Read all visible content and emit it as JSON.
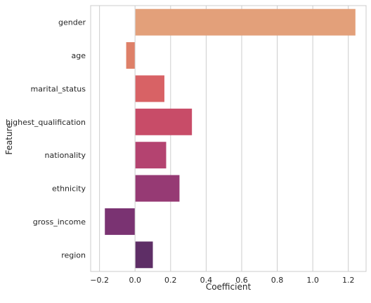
{
  "chart_data": {
    "type": "bar",
    "orientation": "horizontal",
    "title": "",
    "xlabel": "Coefficient",
    "ylabel": "Feature",
    "categories": [
      "gender",
      "age",
      "marital_status",
      "highest_qualification",
      "nationality",
      "ethnicity",
      "gross_income",
      "region"
    ],
    "values": [
      1.24,
      -0.05,
      0.165,
      0.32,
      0.175,
      0.25,
      -0.17,
      0.1
    ],
    "xlim": [
      -0.25,
      1.3
    ],
    "xticks": [
      -0.2,
      0.0,
      0.2,
      0.4,
      0.6,
      0.8,
      1.0,
      1.2
    ],
    "xtick_labels": [
      "−0.2",
      "0.0",
      "0.2",
      "0.4",
      "0.6",
      "0.8",
      "1.0",
      "1.2"
    ],
    "grid": "vertical",
    "colors": [
      "#E3A07A",
      "#DE8068",
      "#D86265",
      "#C84C68",
      "#B44370",
      "#963A74",
      "#7A3372",
      "#5E2E66"
    ]
  }
}
